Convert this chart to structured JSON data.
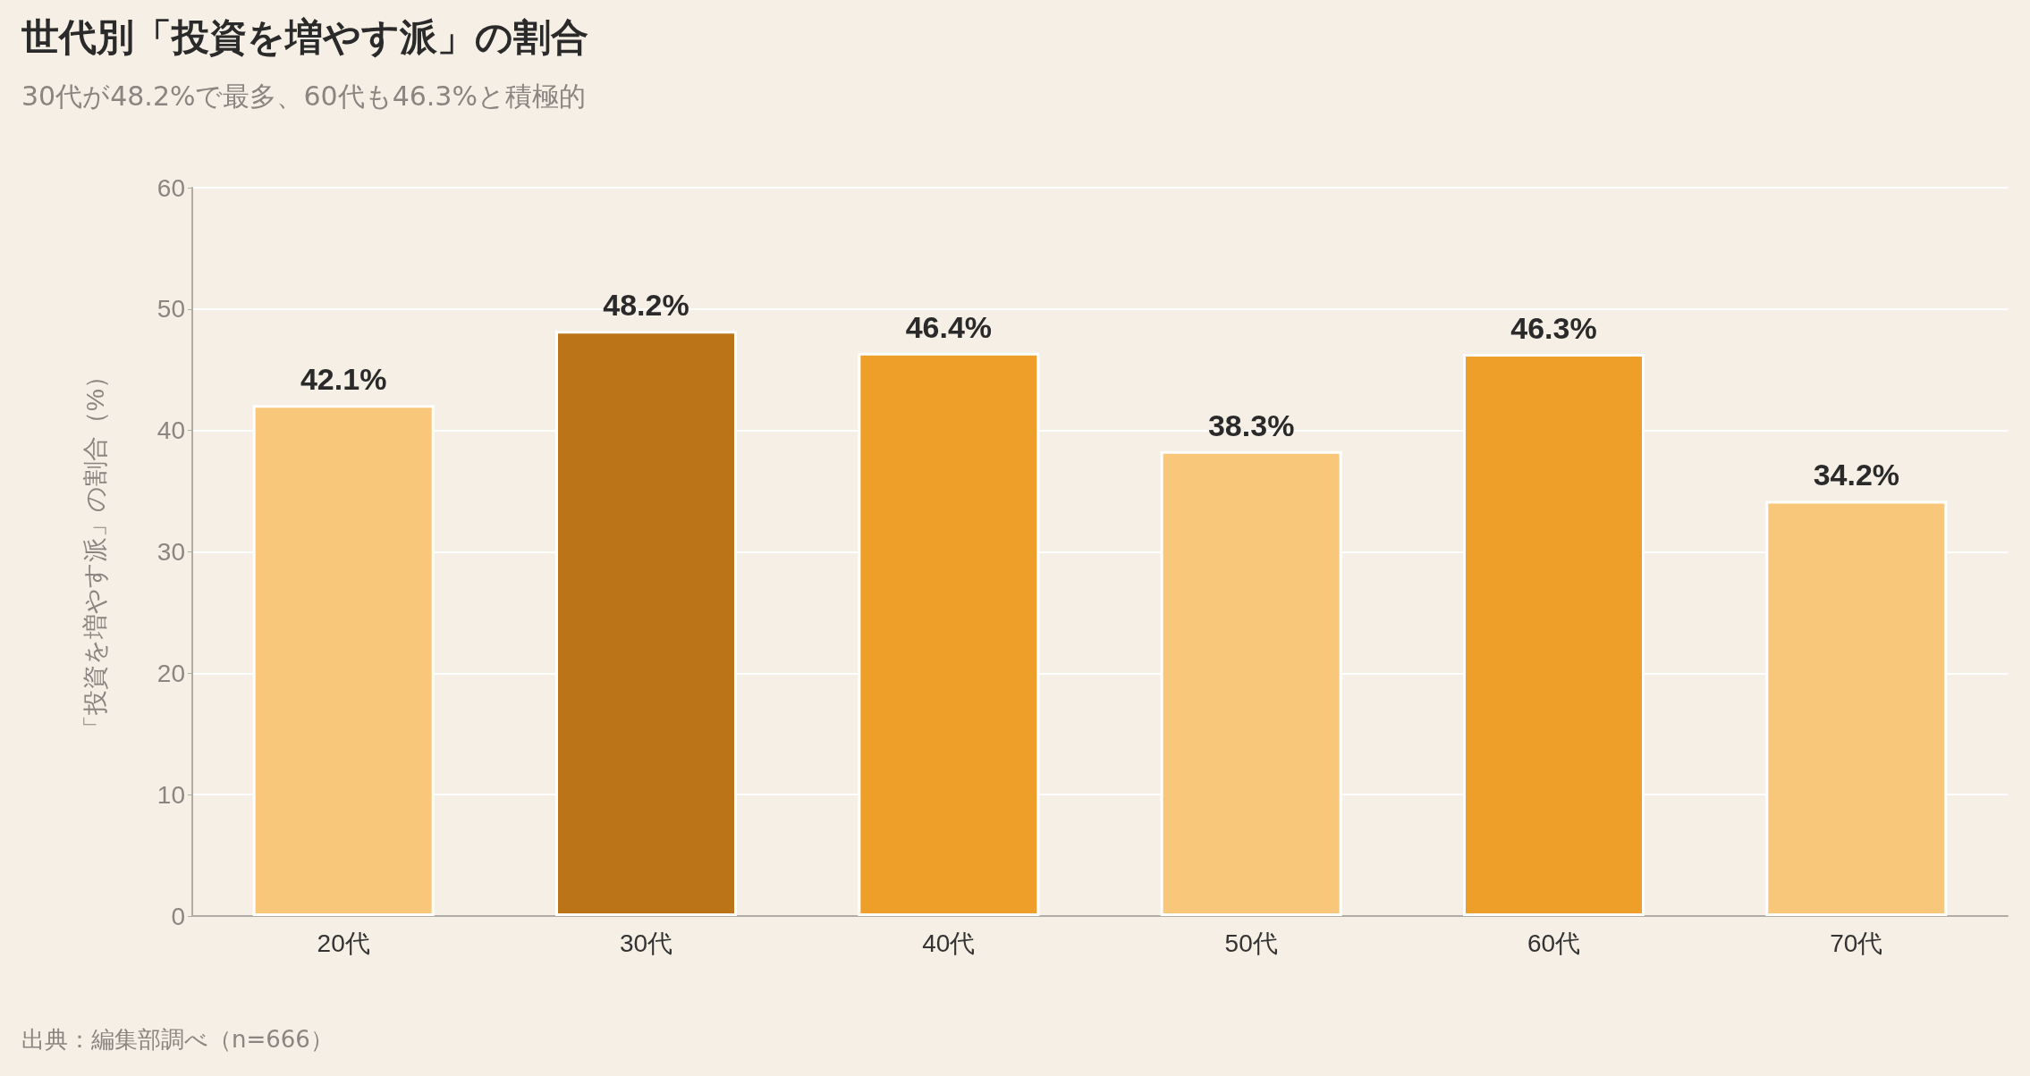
{
  "chart_data": {
    "type": "bar",
    "title": "世代別「投資を増やす派」の割合",
    "subtitle": "30代が48.2%で最多、60代も46.3%と積極的",
    "ylabel": "「投資を増やす派」の割合（%）",
    "annotations": [
      "出典：編集部調べ（n=666）"
    ],
    "categories": [
      "20代",
      "30代",
      "40代",
      "50代",
      "60代",
      "70代"
    ],
    "values": [
      42.1,
      48.2,
      46.4,
      38.3,
      46.3,
      34.2
    ],
    "colors": [
      "#f9c779",
      "#bb7418",
      "#ee9f2a",
      "#f9c779",
      "#ee9f2a",
      "#f9c779"
    ],
    "value_labels": [
      "42.1%",
      "48.2%",
      "46.4%",
      "38.3%",
      "46.3%",
      "34.2%"
    ],
    "ylim": [
      0,
      60
    ],
    "yticks": [
      0,
      10,
      20,
      30,
      40,
      50,
      60
    ],
    "grid": "y"
  }
}
